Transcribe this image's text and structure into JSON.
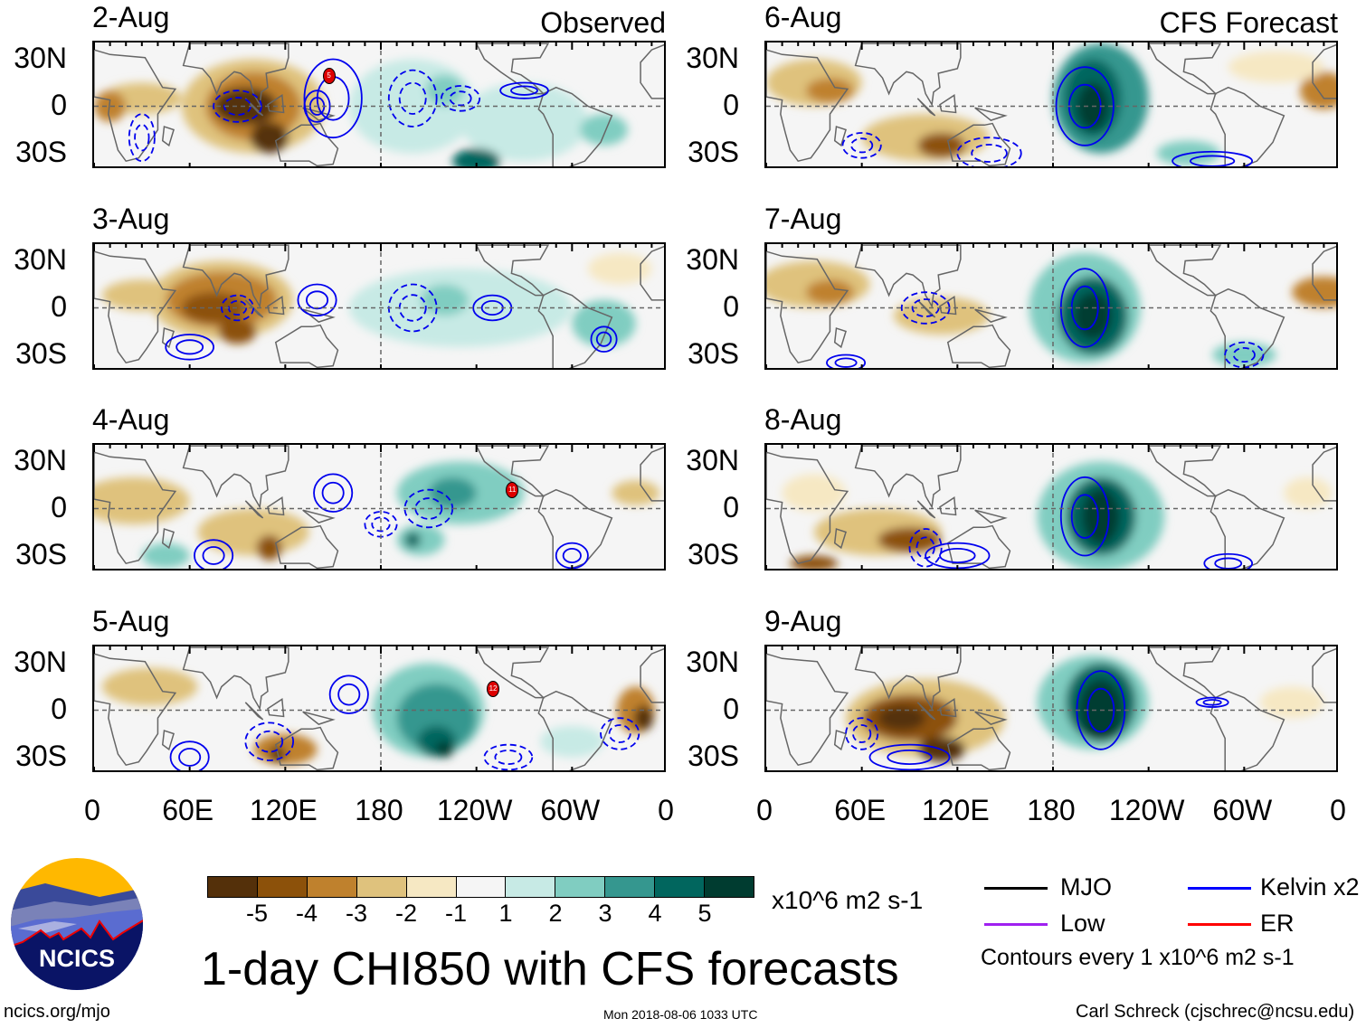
{
  "title": "1-day CHI850 with CFS forecasts",
  "left_column_label": "Observed",
  "right_column_label": "CFS Forecast",
  "panels_left": [
    {
      "date": "2-Aug",
      "storm": "5"
    },
    {
      "date": "3-Aug",
      "storm": null
    },
    {
      "date": "4-Aug",
      "storm": "11"
    },
    {
      "date": "5-Aug",
      "storm": "12"
    }
  ],
  "panels_right": [
    {
      "date": "6-Aug"
    },
    {
      "date": "7-Aug"
    },
    {
      "date": "8-Aug"
    },
    {
      "date": "9-Aug"
    }
  ],
  "lat_labels": [
    "30N",
    "0",
    "30S"
  ],
  "lon_labels": [
    "0",
    "60E",
    "120E",
    "180",
    "120W",
    "60W",
    "0"
  ],
  "colorbar": {
    "colors": [
      "#54300a",
      "#8c510a",
      "#bf812d",
      "#dfc27d",
      "#f6e8c3",
      "#f5f5f5",
      "#c7eae5",
      "#80cdc1",
      "#35978f",
      "#01665e",
      "#003c30"
    ],
    "ticks": [
      "-5",
      "-4",
      "-3",
      "-2",
      "-1",
      "1",
      "2",
      "3",
      "4",
      "5"
    ],
    "units": "x10^6 m2 s-1"
  },
  "legend": {
    "items": [
      {
        "label": "MJO",
        "color": "#000000"
      },
      {
        "label": "Kelvin x2",
        "color": "#0000ff"
      },
      {
        "label": "Low",
        "color": "#a020f0"
      },
      {
        "label": "ER",
        "color": "#ff0000"
      }
    ],
    "note": "Contours every 1 x10^6 m2 s-1"
  },
  "logo": {
    "text": "NCICS"
  },
  "footer": {
    "url": "ncics.org/mjo",
    "timestamp": "Mon 2018-08-06 1033 UTC",
    "credit": "Carl Schreck (cjschrec@ncsu.edu)"
  }
}
